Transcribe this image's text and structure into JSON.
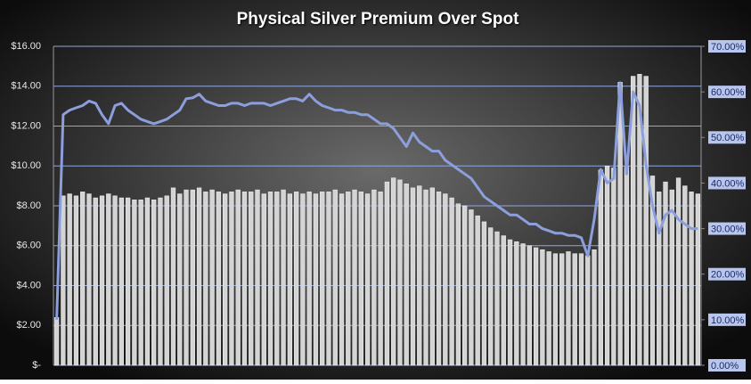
{
  "chart_data": {
    "type": "bar-line",
    "title": "Physical  Silver  Premium  Over  Spot",
    "categories": [
      null,
      null,
      null,
      null,
      null,
      null,
      null,
      null,
      null,
      null,
      null,
      null,
      null,
      null,
      null,
      null,
      null,
      null,
      null,
      null,
      null,
      null,
      null,
      null,
      null,
      null,
      null,
      null,
      null,
      null,
      null,
      null,
      null,
      null,
      null,
      null,
      null,
      null,
      null,
      null,
      null,
      null,
      null,
      null,
      null,
      null,
      null,
      null,
      null,
      null,
      null,
      null,
      null,
      null,
      null,
      null,
      null,
      null,
      null,
      null,
      null,
      null,
      null,
      null,
      null,
      null,
      null,
      null,
      null,
      null,
      null,
      null,
      null,
      null,
      null,
      null,
      null,
      null,
      null,
      null,
      null,
      null,
      null,
      null,
      null,
      null,
      null,
      null,
      null,
      null,
      null,
      null,
      null,
      null,
      null,
      null,
      null,
      null,
      null,
      null
    ],
    "series": [
      {
        "color": "#d4d4d4",
        "axis": "y",
        "values": [
          2.4,
          8.5,
          8.6,
          8.5,
          8.7,
          8.6,
          8.4,
          8.5,
          8.6,
          8.5,
          8.4,
          8.4,
          8.3,
          8.3,
          8.4,
          8.3,
          8.4,
          8.5,
          8.9,
          8.6,
          8.8,
          8.8,
          8.9,
          8.7,
          8.8,
          8.7,
          8.6,
          8.7,
          8.8,
          8.7,
          8.7,
          8.8,
          8.6,
          8.7,
          8.7,
          8.8,
          8.6,
          8.7,
          8.6,
          8.7,
          8.6,
          8.7,
          8.7,
          8.8,
          8.6,
          8.7,
          8.8,
          8.7,
          8.6,
          8.8,
          8.7,
          9.2,
          9.4,
          9.3,
          9.1,
          8.9,
          9.0,
          8.8,
          8.9,
          8.7,
          8.6,
          8.4,
          8.1,
          8.0,
          7.8,
          7.5,
          7.2,
          6.9,
          6.7,
          6.5,
          6.3,
          6.2,
          6.1,
          6.0,
          5.9,
          5.8,
          5.7,
          5.6,
          5.6,
          5.7,
          5.6,
          5.6,
          5.5,
          5.8,
          9.8,
          10.0,
          9.9,
          14.2,
          10.0,
          14.5,
          14.6,
          14.5,
          9.5,
          8.7,
          9.2,
          8.8,
          9.4,
          9.0,
          8.7,
          8.6
        ]
      },
      {
        "color": "#8c9fdc",
        "axis": "y2",
        "values": [
          10,
          55,
          56,
          56.5,
          57,
          58,
          57.5,
          55,
          53,
          57,
          57.5,
          56,
          55,
          54,
          53.5,
          53,
          53.5,
          54,
          55,
          56,
          58.5,
          58.7,
          59.5,
          58,
          57.5,
          57,
          57,
          57.5,
          57.5,
          57,
          57.5,
          57.5,
          57.5,
          57,
          57.5,
          58,
          58.5,
          58.5,
          58,
          59.5,
          58,
          57,
          56.5,
          56,
          56,
          55.5,
          55.5,
          55,
          55,
          54,
          53,
          53,
          52,
          50,
          48,
          51,
          49,
          48,
          47,
          47,
          45,
          44,
          43,
          42,
          41,
          39,
          37,
          36,
          35,
          34,
          33,
          33,
          32,
          31,
          31,
          30,
          29.5,
          29,
          29,
          28.5,
          28.5,
          28,
          24,
          32,
          43,
          40,
          41,
          62,
          42,
          60,
          57,
          44,
          35,
          29,
          33,
          34,
          32,
          31,
          30,
          30
        ]
      }
    ],
    "ylim": [
      0,
      16
    ],
    "yticks": [
      {
        "value": 0,
        "label": "$-"
      },
      {
        "value": 2,
        "label": "$2.00"
      },
      {
        "value": 4,
        "label": "$4.00"
      },
      {
        "value": 6,
        "label": "$6.00"
      },
      {
        "value": 8,
        "label": "$8.00"
      },
      {
        "value": 10,
        "label": "$10.00"
      },
      {
        "value": 12,
        "label": "$12.00"
      },
      {
        "value": 14,
        "label": "$14.00"
      },
      {
        "value": 16,
        "label": "$16.00"
      }
    ],
    "y2lim": [
      0,
      70
    ],
    "y2ticks": [
      {
        "value": 0,
        "label": "0.00%"
      },
      {
        "value": 10,
        "label": "10.00%"
      },
      {
        "value": 20,
        "label": "20.00%"
      },
      {
        "value": 30,
        "label": "30.00%"
      },
      {
        "value": 40,
        "label": "40.00%"
      },
      {
        "value": 50,
        "label": "50.00%"
      },
      {
        "value": 60,
        "label": "60.00%"
      },
      {
        "value": 70,
        "label": "70.00%"
      }
    ],
    "grid": true,
    "grid_color": "#8ea6e0"
  }
}
